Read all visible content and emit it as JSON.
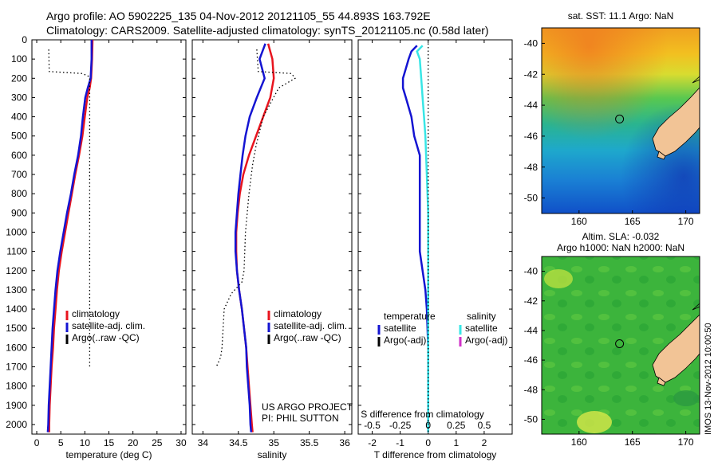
{
  "header": {
    "line1": "Argo profile: AO 5902225_135 04-Nov-2012 20121105_55 44.893S 163.792E",
    "line2": "Climatology: CARS2009. Satellite-adjusted climatology: synTS_20121105.nc (0.58d later)"
  },
  "side_label": "IMOS 13-Nov-2012 10:00:50",
  "colors": {
    "climatology": "#e8141e",
    "satellite": "#1414d2",
    "argo": "#000000",
    "salinity_satellite": "#38e6e6",
    "salinity_argo": "#d030c8",
    "land": "#f2c496"
  },
  "chart_data": [
    {
      "type": "line",
      "xlabel": "temperature (deg C)",
      "ylabel": "",
      "xlim": [
        -1,
        31
      ],
      "ylim": [
        2050,
        0
      ],
      "xticks": [
        0,
        5,
        10,
        15,
        20,
        25,
        30
      ],
      "yticks": [
        0,
        100,
        200,
        300,
        400,
        500,
        600,
        700,
        800,
        900,
        1000,
        1100,
        1200,
        1300,
        1400,
        1500,
        1600,
        1700,
        1800,
        1900,
        2000
      ],
      "legend": {
        "position": "lower-center",
        "entries": [
          "climatology",
          "satellite-adj. clim.",
          "Argo(..raw -QC)"
        ]
      },
      "series": [
        {
          "key": "climatology",
          "style": "solid",
          "points": [
            [
              11.6,
              0
            ],
            [
              11.5,
              100
            ],
            [
              11.3,
              200
            ],
            [
              11.0,
              250
            ],
            [
              10.5,
              300
            ],
            [
              10.0,
              400
            ],
            [
              9.5,
              500
            ],
            [
              8.8,
              600
            ],
            [
              8.0,
              700
            ],
            [
              7.3,
              800
            ],
            [
              6.6,
              900
            ],
            [
              5.9,
              1000
            ],
            [
              5.2,
              1100
            ],
            [
              4.6,
              1200
            ],
            [
              4.2,
              1300
            ],
            [
              3.9,
              1400
            ],
            [
              3.6,
              1500
            ],
            [
              3.4,
              1600
            ],
            [
              3.1,
              1700
            ],
            [
              2.9,
              1800
            ],
            [
              2.7,
              1900
            ],
            [
              2.6,
              2000
            ],
            [
              2.6,
              2040
            ]
          ]
        },
        {
          "key": "satellite",
          "style": "solid",
          "points": [
            [
              11.4,
              0
            ],
            [
              11.4,
              100
            ],
            [
              11.2,
              200
            ],
            [
              10.6,
              250
            ],
            [
              10.1,
              300
            ],
            [
              9.6,
              400
            ],
            [
              9.2,
              500
            ],
            [
              8.6,
              600
            ],
            [
              7.8,
              700
            ],
            [
              7.1,
              800
            ],
            [
              6.3,
              900
            ],
            [
              5.6,
              1000
            ],
            [
              4.9,
              1100
            ],
            [
              4.3,
              1200
            ],
            [
              3.9,
              1300
            ],
            [
              3.6,
              1400
            ],
            [
              3.3,
              1500
            ],
            [
              3.1,
              1600
            ],
            [
              2.9,
              1700
            ],
            [
              2.7,
              1800
            ],
            [
              2.5,
              1900
            ],
            [
              2.4,
              2000
            ],
            [
              2.3,
              2040
            ]
          ]
        },
        {
          "key": "argo",
          "style": "dotted",
          "points": [
            [
              2.5,
              50
            ],
            [
              2.6,
              165
            ],
            [
              9.5,
              175
            ],
            [
              10.8,
              190
            ],
            [
              11.0,
              200
            ],
            [
              11.0,
              400
            ],
            [
              11.0,
              800
            ],
            [
              11.0,
              1200
            ],
            [
              11.0,
              1700
            ]
          ]
        }
      ]
    },
    {
      "type": "line",
      "xlabel": "salinity",
      "ylabel": "",
      "xlim": [
        33.85,
        36.1
      ],
      "ylim": [
        2050,
        0
      ],
      "xticks": [
        34,
        34.5,
        35,
        35.5,
        36
      ],
      "xticklabels": [
        "34",
        "34.5",
        "35",
        "35.5",
        "36"
      ],
      "legend": {
        "position": "lower-center",
        "entries": [
          "climatology",
          "satellite-adj. clim.",
          "Argo(..raw -QC)"
        ]
      },
      "annotation": [
        "US ARGO PROJECT",
        "PI: PHIL SUTTON"
      ],
      "series": [
        {
          "key": "climatology",
          "style": "solid",
          "points": [
            [
              34.92,
              20
            ],
            [
              34.98,
              100
            ],
            [
              35.0,
              200
            ],
            [
              34.95,
              300
            ],
            [
              34.85,
              400
            ],
            [
              34.75,
              500
            ],
            [
              34.65,
              600
            ],
            [
              34.57,
              700
            ],
            [
              34.52,
              800
            ],
            [
              34.49,
              900
            ],
            [
              34.47,
              1000
            ],
            [
              34.47,
              1100
            ],
            [
              34.48,
              1200
            ],
            [
              34.51,
              1300
            ],
            [
              34.55,
              1400
            ],
            [
              34.58,
              1500
            ],
            [
              34.61,
              1600
            ],
            [
              34.63,
              1700
            ],
            [
              34.65,
              1800
            ],
            [
              34.67,
              1900
            ],
            [
              34.69,
              2000
            ],
            [
              34.7,
              2040
            ]
          ]
        },
        {
          "key": "satellite",
          "style": "solid",
          "points": [
            [
              34.88,
              20
            ],
            [
              34.8,
              100
            ],
            [
              34.87,
              200
            ],
            [
              34.76,
              300
            ],
            [
              34.66,
              400
            ],
            [
              34.6,
              500
            ],
            [
              34.56,
              600
            ],
            [
              34.53,
              700
            ],
            [
              34.5,
              800
            ],
            [
              34.48,
              900
            ],
            [
              34.46,
              1000
            ],
            [
              34.46,
              1100
            ],
            [
              34.48,
              1200
            ],
            [
              34.51,
              1300
            ],
            [
              34.55,
              1400
            ],
            [
              34.58,
              1500
            ],
            [
              34.61,
              1600
            ],
            [
              34.62,
              1700
            ],
            [
              34.64,
              1800
            ],
            [
              34.66,
              1900
            ],
            [
              34.67,
              2000
            ],
            [
              34.68,
              2040
            ]
          ]
        },
        {
          "key": "argo",
          "style": "dotted",
          "points": [
            [
              34.76,
              50
            ],
            [
              34.78,
              165
            ],
            [
              35.25,
              175
            ],
            [
              35.3,
              200
            ],
            [
              35.07,
              250
            ],
            [
              34.85,
              400
            ],
            [
              34.75,
              550
            ],
            [
              34.7,
              650
            ],
            [
              34.65,
              800
            ],
            [
              34.6,
              1000
            ],
            [
              34.58,
              1200
            ],
            [
              34.55,
              1260
            ],
            [
              34.4,
              1320
            ],
            [
              34.3,
              1400
            ],
            [
              34.27,
              1600
            ],
            [
              34.25,
              1650
            ],
            [
              34.19,
              1700
            ]
          ]
        }
      ]
    },
    {
      "type": "line",
      "xlabel": "T difference from climatology",
      "ylabel": "",
      "xlim": [
        -2.5,
        3
      ],
      "ylim": [
        2050,
        0
      ],
      "xticks": [
        -2,
        -1,
        0,
        1,
        2
      ],
      "top_axis_label": "S difference from climatology",
      "top_ticks": [
        -0.5,
        -0.25,
        0,
        0.25,
        0.5
      ],
      "top_ticklabels": [
        "-0.5",
        "-0.25",
        "0",
        "0.25",
        "0.5"
      ],
      "legend": {
        "position": "lower-center",
        "groups": [
          {
            "title": "temperature",
            "entries": [
              "satellite",
              "Argo(-adj)"
            ]
          },
          {
            "title": "salinity",
            "entries": [
              "satellite",
              "Argo(-adj)"
            ]
          }
        ]
      },
      "series": [
        {
          "key": "temperature-satellite",
          "style": "solid",
          "points": [
            [
              -0.4,
              30
            ],
            [
              -0.6,
              60
            ],
            [
              -0.7,
              100
            ],
            [
              -0.8,
              150
            ],
            [
              -0.9,
              200
            ],
            [
              -0.9,
              250
            ],
            [
              -0.8,
              300
            ],
            [
              -0.6,
              400
            ],
            [
              -0.5,
              500
            ],
            [
              -0.3,
              600
            ],
            [
              -0.3,
              700
            ],
            [
              -0.3,
              800
            ],
            [
              -0.3,
              900
            ],
            [
              -0.3,
              1000
            ],
            [
              -0.3,
              1100
            ],
            [
              -0.2,
              1200
            ],
            [
              -0.1,
              1300
            ],
            [
              -0.05,
              1400
            ],
            [
              0,
              1600
            ],
            [
              0,
              2040
            ]
          ]
        },
        {
          "key": "salinity-satellite",
          "style": "solid",
          "points": [
            [
              -0.2,
              30
            ],
            [
              -0.4,
              60
            ],
            [
              -0.3,
              100
            ],
            [
              -0.25,
              200
            ],
            [
              -0.2,
              300
            ],
            [
              -0.15,
              400
            ],
            [
              -0.1,
              500
            ],
            [
              -0.05,
              700
            ],
            [
              0,
              900
            ],
            [
              0,
              2040
            ]
          ]
        },
        {
          "key": "zero-reference",
          "style": "dotted",
          "points": [
            [
              0,
              0
            ],
            [
              0,
              2040
            ]
          ]
        }
      ]
    }
  ],
  "maps": [
    {
      "title": "sat. SST: 11.1 Argo: NaN",
      "xlim": [
        156.5,
        171.3
      ],
      "ylim": [
        -51,
        -39
      ],
      "xticks": [
        160,
        165,
        170
      ],
      "yticks": [
        -40,
        -42,
        -44,
        -46,
        -48,
        -50
      ],
      "marker": {
        "lon": 163.792,
        "lat": -44.893
      }
    },
    {
      "title": "Altim. SLA: -0.032",
      "subtitle": "Argo h1000: NaN h2000: NaN",
      "xlim": [
        156.5,
        171.3
      ],
      "ylim": [
        -51,
        -39
      ],
      "xticks": [
        160,
        165,
        170
      ],
      "yticks": [
        -40,
        -42,
        -44,
        -46,
        -48,
        -50
      ],
      "marker": {
        "lon": 163.792,
        "lat": -44.893
      }
    }
  ]
}
